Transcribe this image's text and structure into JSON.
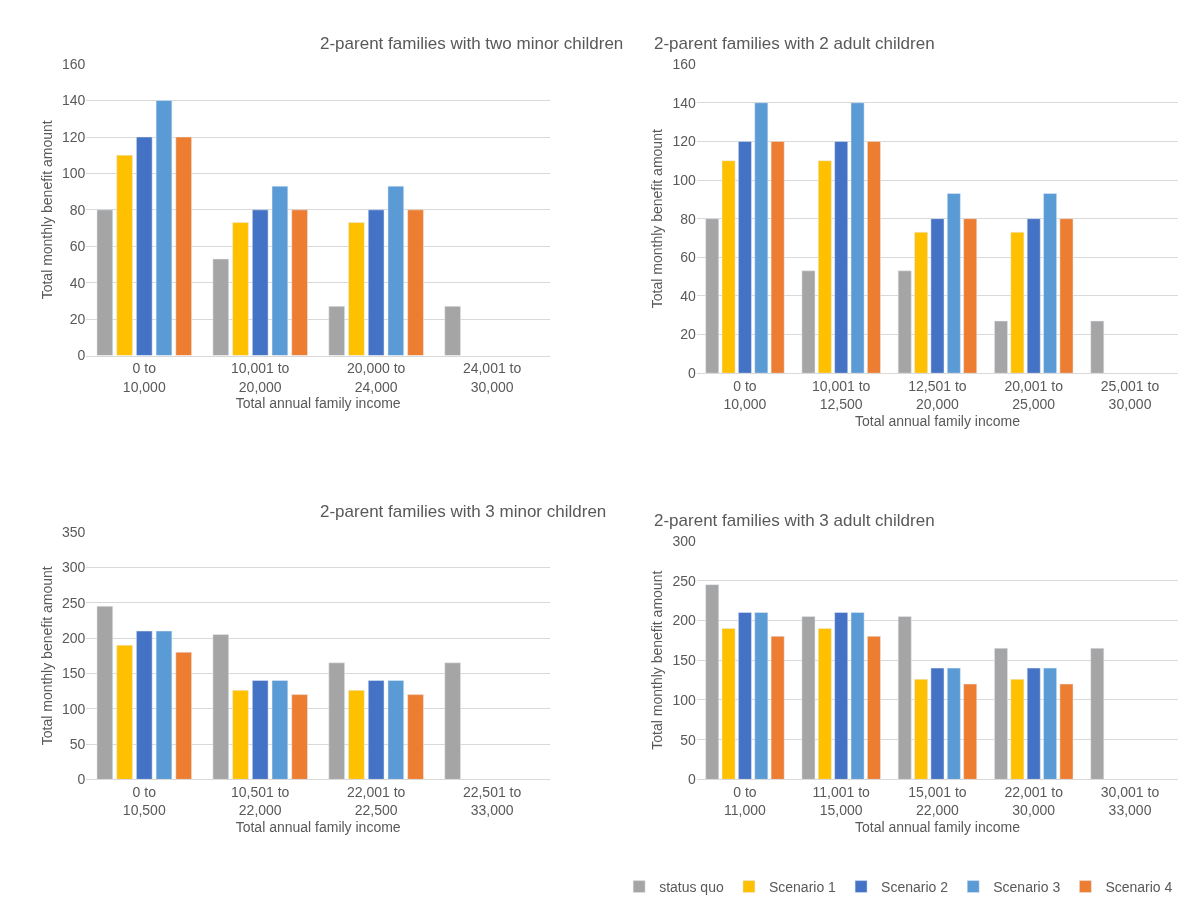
{
  "chart_data": [
    {
      "type": "bar",
      "title": "2-parent families with two minor children",
      "xlabel": "Total annual family income",
      "ylabel": "Total monthly benefit amount",
      "categories": [
        "0 to 10,000",
        "10,001 to 20,000",
        "20,000 to 24,000",
        "24,001 to 30,000"
      ],
      "ylim": [
        0,
        160
      ],
      "yticks": [
        0,
        20,
        40,
        60,
        80,
        100,
        120,
        140,
        160
      ],
      "grid": "y",
      "series": [
        {
          "color": "#a5a5a5",
          "values": [
            80,
            53,
            27,
            27
          ]
        },
        {
          "color": "#ffc000",
          "values": [
            110,
            73,
            73,
            null
          ]
        },
        {
          "color": "#4472c4",
          "values": [
            120,
            80,
            80,
            null
          ]
        },
        {
          "color": "#5b9bd5",
          "values": [
            140,
            93,
            93,
            null
          ]
        },
        {
          "color": "#ed7d31",
          "values": [
            120,
            80,
            80,
            null
          ]
        }
      ]
    },
    {
      "type": "bar",
      "title": "2-parent families with 2 adult children",
      "xlabel": "Total annual family income",
      "ylabel": "Total monthly benefit amount",
      "categories": [
        "0 to 10,000",
        "10,001 to 12,500",
        "12,501 to 20,000",
        "20,001 to 25,000",
        "25,001 to 30,000"
      ],
      "ylim": [
        0,
        160
      ],
      "yticks": [
        0,
        20,
        40,
        60,
        80,
        100,
        120,
        140,
        160
      ],
      "grid": "y",
      "series": [
        {
          "color": "#a5a5a5",
          "values": [
            80,
            53,
            53,
            27,
            27
          ]
        },
        {
          "color": "#ffc000",
          "values": [
            110,
            110,
            73,
            73,
            null
          ]
        },
        {
          "color": "#4472c4",
          "values": [
            120,
            120,
            80,
            80,
            null
          ]
        },
        {
          "color": "#5b9bd5",
          "values": [
            140,
            140,
            93,
            93,
            null
          ]
        },
        {
          "color": "#ed7d31",
          "values": [
            120,
            120,
            80,
            80,
            null
          ]
        }
      ]
    },
    {
      "type": "bar",
      "title": "2-parent families with 3 minor children",
      "xlabel": "Total annual family income",
      "ylabel": "Total monthly benefit amount",
      "categories": [
        "0 to 10,500",
        "10,501 to 22,000",
        "22,001 to 22,500",
        "22,501 to 33,000"
      ],
      "ylim": [
        0,
        350
      ],
      "yticks": [
        0,
        50,
        100,
        150,
        200,
        250,
        300,
        350
      ],
      "grid": "y",
      "series": [
        {
          "color": "#a5a5a5",
          "values": [
            245,
            205,
            165,
            165
          ]
        },
        {
          "color": "#ffc000",
          "values": [
            190,
            126,
            126,
            null
          ]
        },
        {
          "color": "#4472c4",
          "values": [
            210,
            140,
            140,
            null
          ]
        },
        {
          "color": "#5b9bd5",
          "values": [
            210,
            140,
            140,
            null
          ]
        },
        {
          "color": "#ed7d31",
          "values": [
            180,
            120,
            120,
            null
          ]
        }
      ]
    },
    {
      "type": "bar",
      "title": "2-parent families with 3 adult children",
      "xlabel": "Total annual family income",
      "ylabel": "Total monthly benefit amount",
      "categories": [
        "0 to 11,000",
        "11,001 to 15,000",
        "15,001 to 22,000",
        "22,001 to 30,000",
        "30,001 to 33,000"
      ],
      "ylim": [
        0,
        300
      ],
      "yticks": [
        0,
        50,
        100,
        150,
        200,
        250,
        300
      ],
      "grid": "y",
      "legend": "bottom",
      "series": [
        {
          "name": "status quo",
          "color": "#a5a5a5",
          "values": [
            245,
            205,
            205,
            165,
            165
          ]
        },
        {
          "name": "Scenario 1",
          "color": "#ffc000",
          "values": [
            190,
            190,
            126,
            126,
            null
          ]
        },
        {
          "name": "Scenario 2",
          "color": "#4472c4",
          "values": [
            210,
            210,
            140,
            140,
            null
          ]
        },
        {
          "name": "Scenario 3",
          "color": "#5b9bd5",
          "values": [
            210,
            210,
            140,
            140,
            null
          ]
        },
        {
          "name": "Scenario 4",
          "color": "#ed7d31",
          "values": [
            180,
            180,
            120,
            120,
            null
          ]
        }
      ]
    }
  ]
}
